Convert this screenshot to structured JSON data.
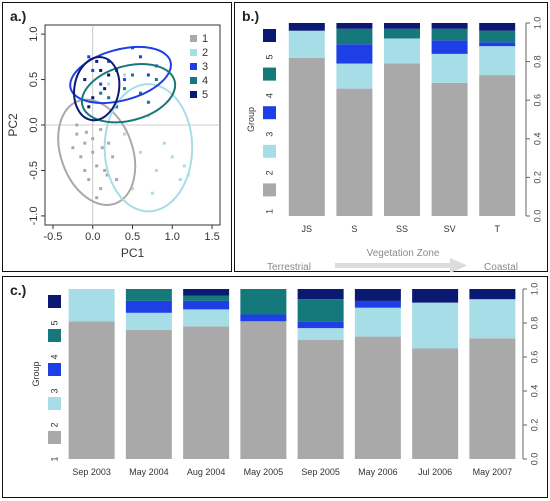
{
  "panels": {
    "a": {
      "label": "a.)"
    },
    "b": {
      "label": "b.)"
    },
    "c": {
      "label": "c.)"
    }
  },
  "colors": {
    "group1": "#a9a9a9",
    "group2": "#a6dde6",
    "group3": "#1f3fe6",
    "group4": "#15787a",
    "group5": "#0a1a73"
  },
  "chart_data": [
    {
      "type": "scatter",
      "panel": "a",
      "xlabel": "PC1",
      "ylabel": "PC2",
      "xlim": [
        -0.6,
        1.6
      ],
      "ylim": [
        -1.1,
        1.1
      ],
      "xticks": [
        -0.5,
        0.0,
        0.5,
        1.0,
        1.5
      ],
      "yticks": [
        -1.0,
        -0.5,
        0.0,
        0.5,
        1.0
      ],
      "xtick_labels": [
        "-0.5",
        "0.0",
        "0.5",
        "1.0",
        "1.5"
      ],
      "ytick_labels": [
        "-1.0",
        "-0.5",
        "0.0",
        "0.5",
        "1.0"
      ],
      "reference_lines": {
        "x": 0,
        "y": 0
      },
      "legend": {
        "position": "top-right",
        "entries": [
          "1",
          "2",
          "3",
          "4",
          "5"
        ]
      },
      "series": [
        {
          "name": "1",
          "color": "#a9a9a9",
          "ellipse": {
            "cx": 0.05,
            "cy": -0.3,
            "rx": 0.45,
            "ry": 0.6,
            "angle": -20
          },
          "points": [
            [
              -0.2,
              -0.1
            ],
            [
              -0.1,
              -0.2
            ],
            [
              0.0,
              -0.3
            ],
            [
              0.1,
              -0.05
            ],
            [
              -0.15,
              -0.35
            ],
            [
              0.05,
              -0.45
            ],
            [
              0.2,
              -0.2
            ],
            [
              -0.05,
              -0.6
            ],
            [
              0.1,
              -0.7
            ],
            [
              0.15,
              -0.5
            ],
            [
              -0.25,
              -0.25
            ],
            [
              0.0,
              -0.15
            ],
            [
              0.25,
              -0.35
            ],
            [
              -0.1,
              -0.5
            ],
            [
              0.3,
              -0.6
            ],
            [
              0.05,
              -0.8
            ],
            [
              -0.2,
              0.0
            ],
            [
              0.12,
              -0.25
            ],
            [
              -0.08,
              -0.08
            ],
            [
              0.18,
              -0.55
            ]
          ]
        },
        {
          "name": "2",
          "color": "#a6dde6",
          "ellipse": {
            "cx": 0.7,
            "cy": -0.25,
            "rx": 0.55,
            "ry": 0.7,
            "angle": 0
          },
          "points": [
            [
              0.4,
              -0.1
            ],
            [
              0.6,
              -0.3
            ],
            [
              0.8,
              -0.5
            ],
            [
              1.0,
              -0.35
            ],
            [
              1.1,
              -0.6
            ],
            [
              0.5,
              -0.7
            ],
            [
              0.3,
              0.2
            ],
            [
              0.7,
              0.1
            ],
            [
              0.9,
              -0.2
            ],
            [
              1.15,
              -0.45
            ],
            [
              0.2,
              0.45
            ],
            [
              0.4,
              0.55
            ],
            [
              1.2,
              -0.55
            ],
            [
              0.75,
              -0.75
            ]
          ]
        },
        {
          "name": "3",
          "color": "#1f3fe6",
          "ellipse": {
            "cx": 0.35,
            "cy": 0.55,
            "rx": 0.65,
            "ry": 0.28,
            "angle": -15
          },
          "points": [
            [
              0.0,
              0.6
            ],
            [
              0.2,
              0.7
            ],
            [
              0.4,
              0.5
            ],
            [
              0.6,
              0.75
            ],
            [
              0.8,
              0.65
            ],
            [
              0.1,
              0.45
            ],
            [
              0.5,
              0.85
            ],
            [
              0.3,
              0.6
            ],
            [
              0.7,
              0.55
            ],
            [
              -0.05,
              0.75
            ]
          ]
        },
        {
          "name": "4",
          "color": "#15787a",
          "ellipse": {
            "cx": 0.45,
            "cy": 0.35,
            "rx": 0.6,
            "ry": 0.3,
            "angle": -15
          },
          "points": [
            [
              0.2,
              0.3
            ],
            [
              0.4,
              0.4
            ],
            [
              0.6,
              0.35
            ],
            [
              0.8,
              0.5
            ],
            [
              0.3,
              0.2
            ],
            [
              0.5,
              0.55
            ],
            [
              0.1,
              0.35
            ],
            [
              0.7,
              0.25
            ]
          ]
        },
        {
          "name": "5",
          "color": "#0a1a73",
          "ellipse": {
            "cx": 0.05,
            "cy": 0.4,
            "rx": 0.28,
            "ry": 0.35,
            "angle": 10
          },
          "points": [
            [
              -0.1,
              0.5
            ],
            [
              0.0,
              0.3
            ],
            [
              0.1,
              0.6
            ],
            [
              0.15,
              0.4
            ],
            [
              -0.05,
              0.2
            ],
            [
              0.2,
              0.55
            ],
            [
              0.05,
              0.7
            ]
          ]
        }
      ]
    },
    {
      "type": "bar",
      "panel": "b",
      "stacked": true,
      "xlabel": "Vegetation Zone",
      "gradient_labels": [
        "Terrestrial",
        "Coastal"
      ],
      "legend_title": "Group",
      "legend": {
        "position": "left",
        "entries": [
          "5",
          "4",
          "3",
          "2",
          "1"
        ]
      },
      "categories": [
        "JS",
        "S",
        "SS",
        "SV",
        "T"
      ],
      "ylim": [
        0,
        1
      ],
      "yticks": [
        0.0,
        0.2,
        0.4,
        0.6,
        0.8,
        1.0
      ],
      "ytick_labels": [
        "0.0",
        "0.2",
        "0.4",
        "0.6",
        "0.8",
        "1.0"
      ],
      "series": [
        {
          "name": "1",
          "color": "#a9a9a9",
          "values": [
            0.82,
            0.66,
            0.79,
            0.69,
            0.73
          ]
        },
        {
          "name": "2",
          "color": "#a6dde6",
          "values": [
            0.14,
            0.13,
            0.13,
            0.15,
            0.15
          ]
        },
        {
          "name": "3",
          "color": "#1f3fe6",
          "values": [
            0.0,
            0.1,
            0.0,
            0.07,
            0.02
          ]
        },
        {
          "name": "4",
          "color": "#15787a",
          "values": [
            0.0,
            0.08,
            0.05,
            0.06,
            0.06
          ]
        },
        {
          "name": "5",
          "color": "#0a1a73",
          "values": [
            0.04,
            0.03,
            0.03,
            0.03,
            0.04
          ]
        }
      ]
    },
    {
      "type": "bar",
      "panel": "c",
      "stacked": true,
      "legend_title": "Group",
      "legend": {
        "position": "left",
        "entries": [
          "5",
          "4",
          "3",
          "2",
          "1"
        ]
      },
      "categories": [
        "Sep 2003",
        "May 2004",
        "Aug 2004",
        "May 2005",
        "Sep 2005",
        "May 2006",
        "Jul 2006",
        "May 2007"
      ],
      "ylim": [
        0,
        1
      ],
      "yticks": [
        0.0,
        0.2,
        0.4,
        0.6,
        0.8,
        1.0
      ],
      "ytick_labels": [
        "0.0",
        "0.2",
        "0.4",
        "0.6",
        "0.8",
        "1.0"
      ],
      "series": [
        {
          "name": "1",
          "color": "#a9a9a9",
          "values": [
            0.81,
            0.76,
            0.78,
            0.81,
            0.7,
            0.72,
            0.65,
            0.71
          ]
        },
        {
          "name": "2",
          "color": "#a6dde6",
          "values": [
            0.19,
            0.1,
            0.1,
            0.0,
            0.07,
            0.17,
            0.27,
            0.23
          ]
        },
        {
          "name": "3",
          "color": "#1f3fe6",
          "values": [
            0.0,
            0.07,
            0.05,
            0.04,
            0.04,
            0.04,
            0.0,
            0.0
          ]
        },
        {
          "name": "4",
          "color": "#15787a",
          "values": [
            0.0,
            0.07,
            0.03,
            0.15,
            0.13,
            0.0,
            0.0,
            0.0
          ]
        },
        {
          "name": "5",
          "color": "#0a1a73",
          "values": [
            0.0,
            0.0,
            0.04,
            0.0,
            0.06,
            0.07,
            0.08,
            0.06
          ]
        }
      ]
    }
  ]
}
